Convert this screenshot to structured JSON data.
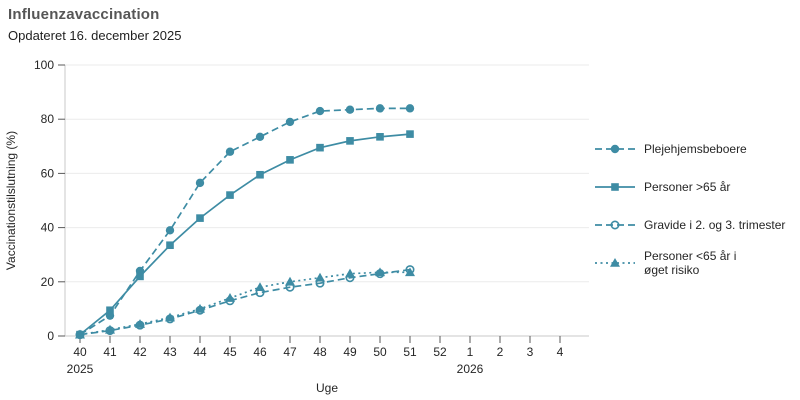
{
  "chart_data": {
    "type": "line",
    "title": "Influenzavaccination",
    "subtitle": "Opdateret 16. december 2025",
    "xlabel": "Uge",
    "ylabel": "Vaccinationstilslutning (%)",
    "line_color": "#3e8ca4",
    "grid": true,
    "legend_position": "right",
    "ylim": [
      0,
      100
    ],
    "y_ticks": [
      0,
      20,
      40,
      60,
      80,
      100
    ],
    "x_ticklabels": [
      "40",
      "41",
      "42",
      "43",
      "44",
      "45",
      "46",
      "47",
      "48",
      "49",
      "50",
      "51",
      "52",
      "1",
      "2",
      "3",
      "4"
    ],
    "x_year_labels": [
      {
        "tick_index": 0,
        "label": "2025"
      },
      {
        "tick_index": 13,
        "label": "2026"
      }
    ],
    "categories": [
      40,
      41,
      42,
      43,
      44,
      45,
      46,
      47,
      48,
      49,
      50,
      51
    ],
    "series": [
      {
        "name": "Plejehjemsbeboere",
        "marker": "circle",
        "line": "dashed",
        "values": [
          0.5,
          7.5,
          24,
          39,
          56.5,
          68,
          73.5,
          79,
          83,
          83.5,
          84,
          84
        ]
      },
      {
        "name": "Personer >65 år",
        "marker": "square",
        "line": "solid",
        "values": [
          0.5,
          9.5,
          22,
          33.5,
          43.5,
          52,
          59.5,
          65,
          69.5,
          72,
          73.5,
          74.5
        ]
      },
      {
        "name": "Gravide i 2. og 3. trimester",
        "marker": "open-circle",
        "line": "dashed",
        "values": [
          0.5,
          2,
          4,
          6.3,
          9.5,
          13,
          16,
          18,
          19.5,
          21.5,
          23,
          24.5
        ]
      },
      {
        "name": "Personer <65 år i øget risiko",
        "marker": "triangle",
        "line": "dotted",
        "values": [
          0.5,
          2.3,
          4.4,
          6.8,
          10,
          14,
          18,
          20,
          21.5,
          23,
          23.5,
          23.5
        ]
      }
    ]
  }
}
